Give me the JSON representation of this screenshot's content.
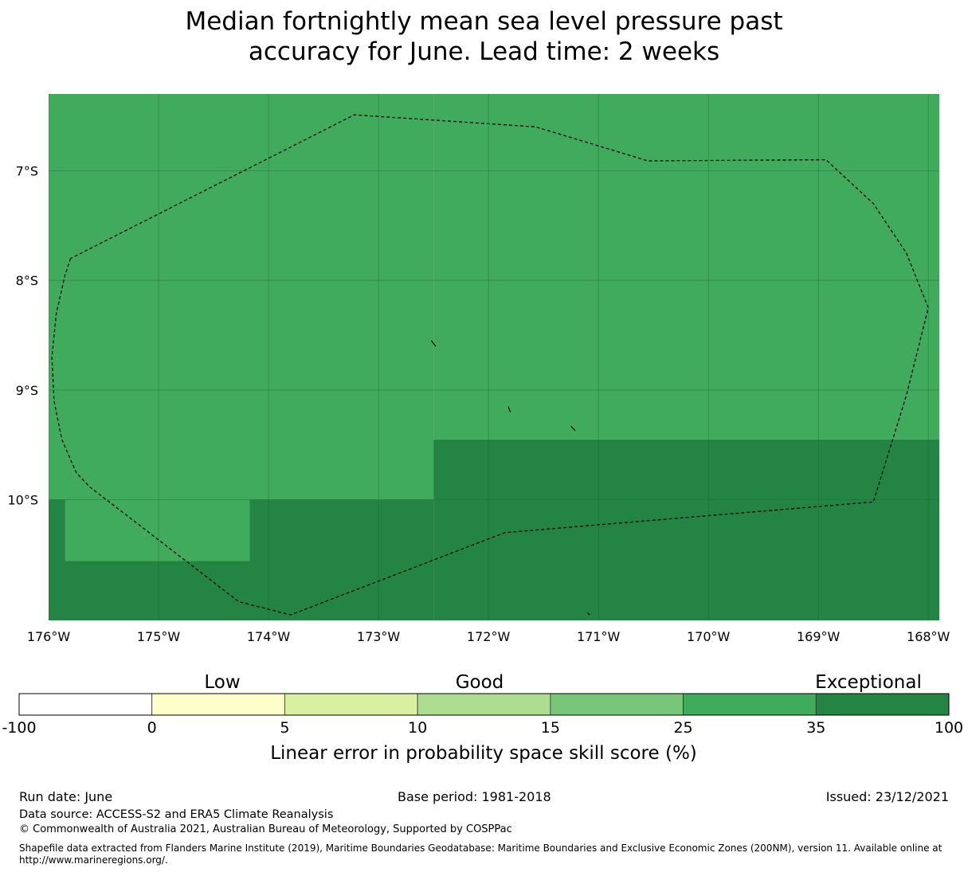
{
  "title": "Median fortnightly mean sea level pressure past\naccuracy for June. Lead time: 2 weeks",
  "map": {
    "lat_labels": [
      "7°S",
      "8°S",
      "9°S",
      "10°S"
    ],
    "lon_labels": [
      "176°W",
      "175°W",
      "174°W",
      "173°W",
      "172°W",
      "171°W",
      "170°W",
      "169°W",
      "168°W"
    ],
    "region_colors": {
      "band_25_35": "#41ab5d",
      "band_35_100": "#238443"
    },
    "grid_cells": [
      {
        "lon": [
          -176.0,
          -172.5
        ],
        "lat": [
          -6.3,
          -10.0
        ],
        "band": "band_25_35"
      },
      {
        "lon": [
          -172.5,
          -167.9
        ],
        "lat": [
          -6.3,
          -9.45
        ],
        "band": "band_25_35"
      },
      {
        "lon": [
          -172.5,
          -167.9
        ],
        "lat": [
          -9.45,
          -11.1
        ],
        "band": "band_35_100"
      },
      {
        "lon": [
          -176.0,
          -172.5
        ],
        "lat": [
          -10.0,
          -11.1
        ],
        "band": "band_35_100"
      },
      {
        "lon": [
          -175.85,
          -174.17
        ],
        "lat": [
          -10.0,
          -10.56
        ],
        "band": "band_25_35"
      }
    ],
    "eez_boundary": [
      [
        -175.8,
        -7.8
      ],
      [
        -175.85,
        -7.95
      ],
      [
        -175.93,
        -8.3
      ],
      [
        -175.97,
        -8.7
      ],
      [
        -175.95,
        -9.1
      ],
      [
        -175.88,
        -9.45
      ],
      [
        -175.75,
        -9.75
      ],
      [
        -175.63,
        -9.88
      ],
      [
        -174.27,
        -10.93
      ],
      [
        -173.8,
        -11.05
      ],
      [
        -171.85,
        -10.3
      ],
      [
        -168.5,
        -10.02
      ],
      [
        -168.2,
        -9.05
      ],
      [
        -168.0,
        -8.25
      ],
      [
        -168.2,
        -7.75
      ],
      [
        -168.5,
        -7.3
      ],
      [
        -168.93,
        -6.9
      ],
      [
        -170.55,
        -6.91
      ],
      [
        -171.57,
        -6.6
      ],
      [
        -173.22,
        -6.49
      ],
      [
        -175.8,
        -7.8
      ]
    ],
    "islands": [
      [
        [
          -172.52,
          -8.55
        ],
        [
          -172.48,
          -8.6
        ]
      ],
      [
        [
          -171.82,
          -9.15
        ],
        [
          -171.8,
          -9.2
        ]
      ],
      [
        [
          -171.25,
          -9.33
        ],
        [
          -171.21,
          -9.37
        ]
      ],
      [
        [
          -171.1,
          -11.03
        ],
        [
          -171.08,
          -11.05
        ]
      ]
    ]
  },
  "colorbar": {
    "category_labels": [
      "Low",
      "Good",
      "Exceptional"
    ],
    "ticks": [
      "-100",
      "0",
      "5",
      "10",
      "15",
      "25",
      "35",
      "100"
    ],
    "colors": [
      "#ffffff",
      "#ffffcc",
      "#d9f0a3",
      "#addd8e",
      "#78c679",
      "#41ab5d",
      "#238443"
    ],
    "title": "Linear error in probability space skill score (%)"
  },
  "footer": {
    "run_date": "Run date: June",
    "base_period": "Base period: 1981-2018",
    "issued": "Issued: 23/12/2021",
    "data_source": "Data source: ACCESS-S2 and ERA5 Climate Reanalysis",
    "copyright": "© Commonwealth of Australia 2021, Australian Bureau of Meteorology, Supported by COSPPac",
    "shapefile_note": "Shapefile data extracted from Flanders Marine Institute (2019), Maritime Boundaries Geodatabase: Maritime Boundaries and Exclusive Economic Zones (200NM), version 11. Available online at http://www.marineregions.org/."
  }
}
